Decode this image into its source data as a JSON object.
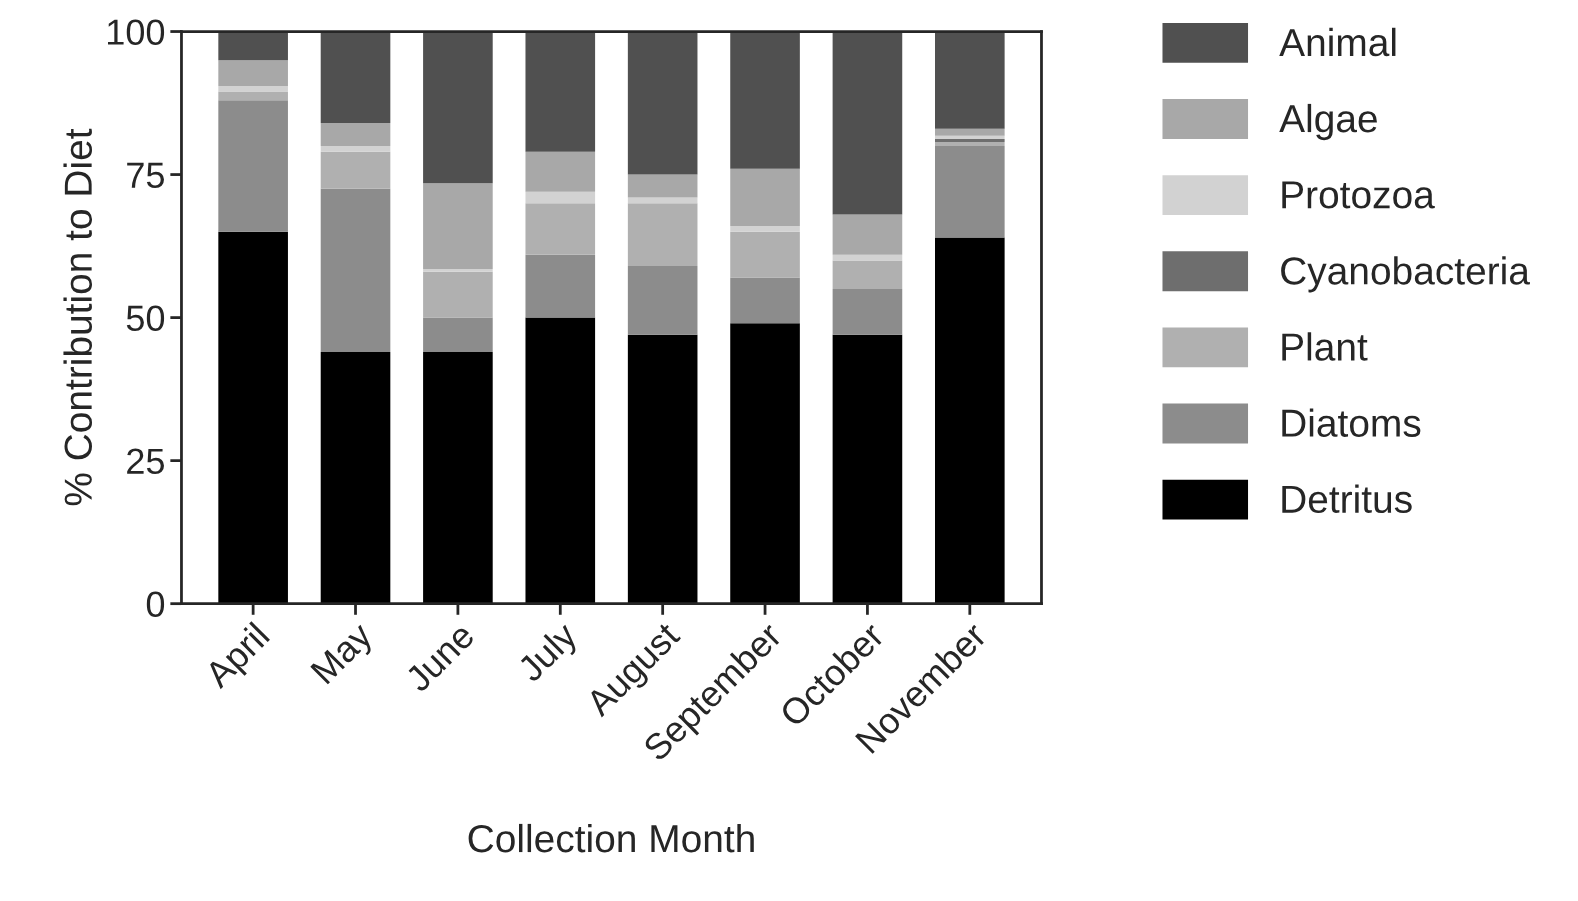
{
  "chart_data": {
    "type": "bar",
    "stacked": true,
    "xlabel": "Collection Month",
    "ylabel": "% Contribution to Diet",
    "categories": [
      "April",
      "May",
      "June",
      "July",
      "August",
      "September",
      "October",
      "November"
    ],
    "series": [
      {
        "name": "Detritus",
        "color": "#000000",
        "values": [
          65,
          44,
          44,
          50,
          47,
          49,
          47,
          64
        ]
      },
      {
        "name": "Diatoms",
        "color": "#8c8c8c",
        "values": [
          23,
          28.5,
          6,
          11,
          12,
          8,
          8,
          16
        ]
      },
      {
        "name": "Plant",
        "color": "#b0b0b0",
        "values": [
          1.5,
          6.5,
          8,
          9,
          11,
          8,
          5,
          0.7
        ]
      },
      {
        "name": "Cyanobacteria",
        "color": "#6e6e6e",
        "values": [
          0,
          0,
          0,
          0,
          0,
          0,
          0,
          0.5
        ]
      },
      {
        "name": "Protozoa",
        "color": "#d2d2d2",
        "values": [
          1,
          1,
          0.5,
          2,
          1,
          1,
          1,
          0.6
        ]
      },
      {
        "name": "Algae",
        "color": "#a8a8a8",
        "values": [
          4.5,
          4,
          15,
          7,
          4,
          10,
          7,
          1.2
        ]
      },
      {
        "name": "Animal",
        "color": "#505050",
        "values": [
          5,
          16,
          26.5,
          21,
          25,
          24,
          32,
          17
        ]
      }
    ],
    "ylim": [
      0,
      100
    ],
    "yticks": [
      0,
      25,
      50,
      75,
      100
    ],
    "grid": false,
    "legend": "right"
  }
}
